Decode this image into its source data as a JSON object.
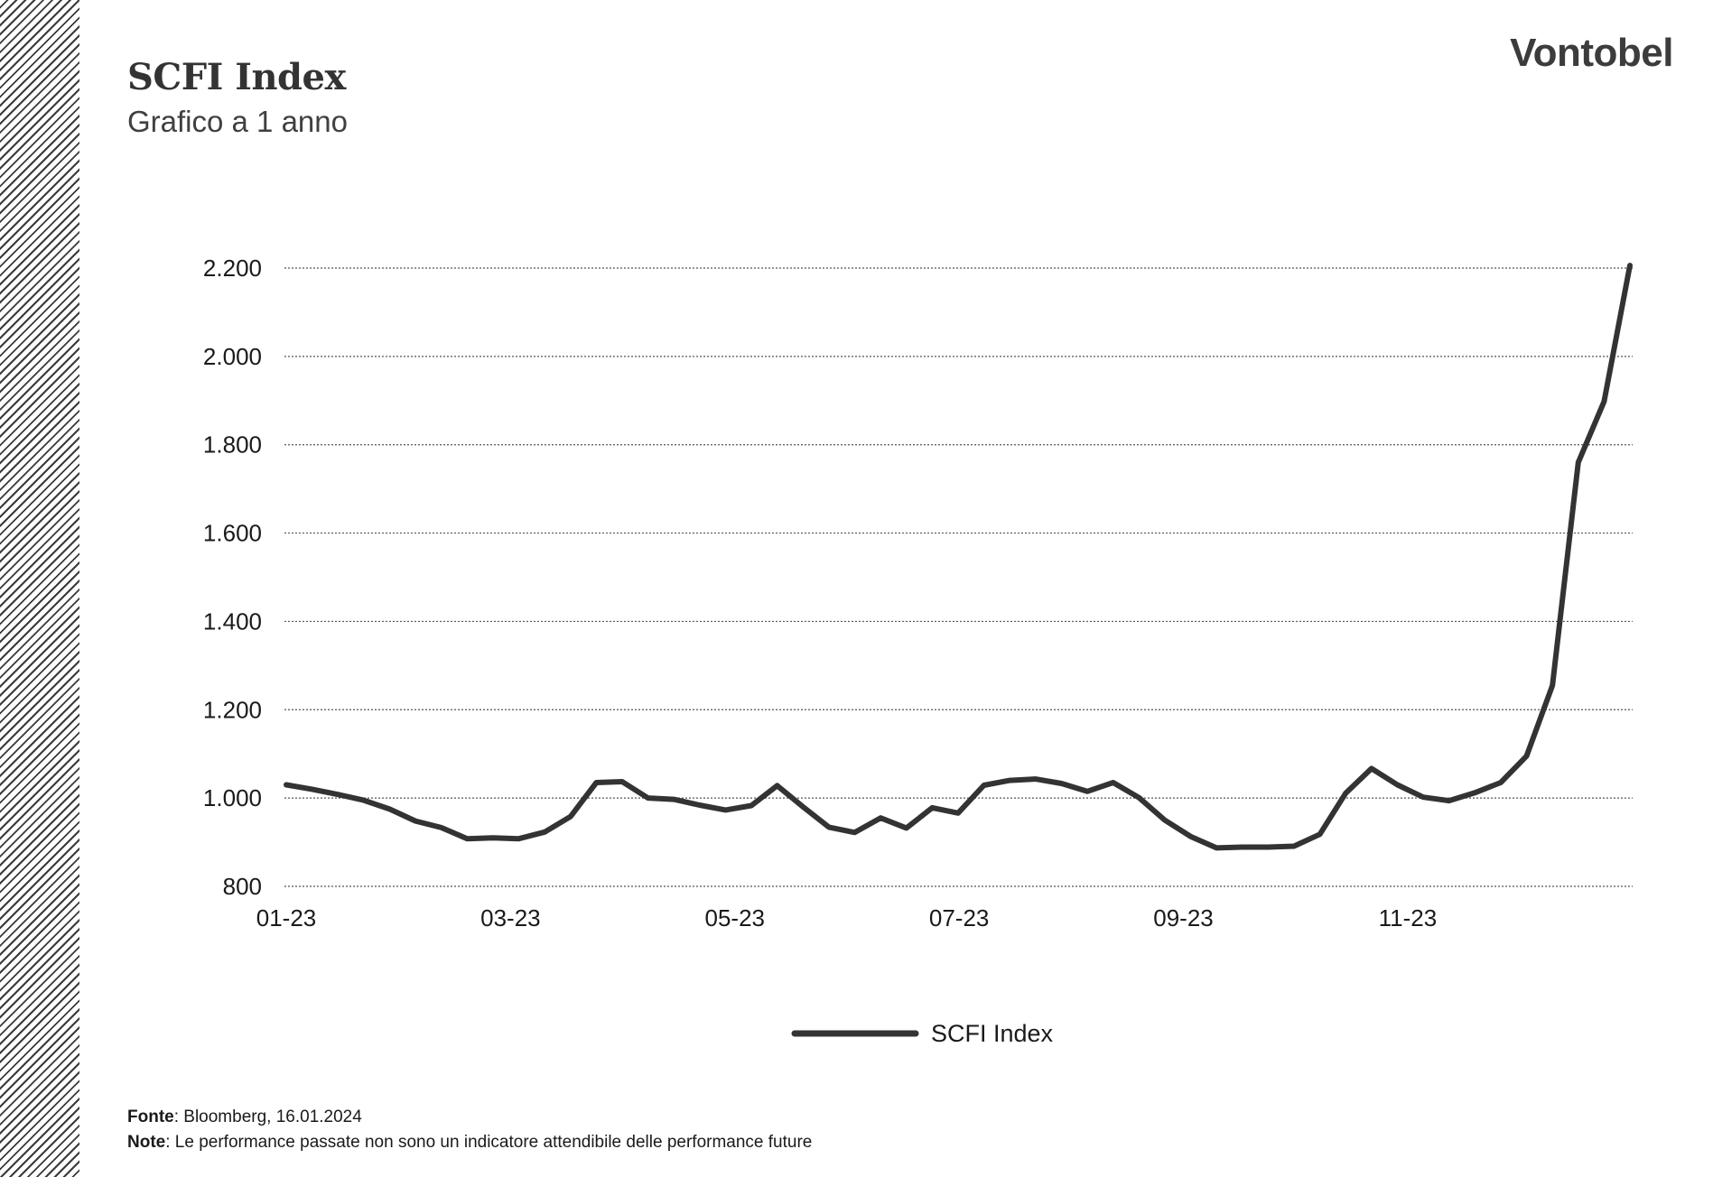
{
  "header": {
    "title": "SCFI Index",
    "subtitle": "Grafico a 1 anno",
    "brand": "Vontobel"
  },
  "footer": {
    "source_label": "Fonte",
    "source_text": ": Bloomberg, 16.01.2024",
    "note_label": "Note",
    "note_text": ": Le performance passate non sono un indicatore attendibile delle performance future"
  },
  "colors": {
    "line": "#333333",
    "grid": "#555555",
    "text": "#1a1a1a"
  },
  "chart_data": {
    "type": "line",
    "title": "SCFI Index",
    "subtitle": "Grafico a 1 anno",
    "ylim": [
      800,
      2200
    ],
    "y_ticks": [
      800,
      1000,
      1200,
      1400,
      1600,
      1800,
      2000,
      2200
    ],
    "y_tick_labels": [
      "800",
      "1.000",
      "1.200",
      "1.400",
      "1.600",
      "1.800",
      "2.000",
      "2.200"
    ],
    "x_tick_labels": [
      "01-23",
      "03-23",
      "05-23",
      "07-23",
      "09-23",
      "11-23"
    ],
    "grid": "horizontal dotted",
    "legend_position": "bottom-center",
    "series": [
      {
        "name": "SCFI Index",
        "frequency": "weekly",
        "start": "01-23",
        "values": [
          1030,
          1020,
          1008,
          995,
          975,
          948,
          933,
          908,
          910,
          908,
          923,
          958,
          1035,
          1037,
          1000,
          997,
          984,
          973,
          983,
          1028,
          980,
          934,
          922,
          955,
          932,
          978,
          966,
          1029,
          1040,
          1043,
          1033,
          1015,
          1035,
          1001,
          950,
          913,
          887,
          889,
          889,
          891,
          918,
          1011,
          1067,
          1030,
          1002,
          994,
          1012,
          1035,
          1095,
          1255,
          1760,
          1898,
          2206
        ]
      }
    ]
  }
}
